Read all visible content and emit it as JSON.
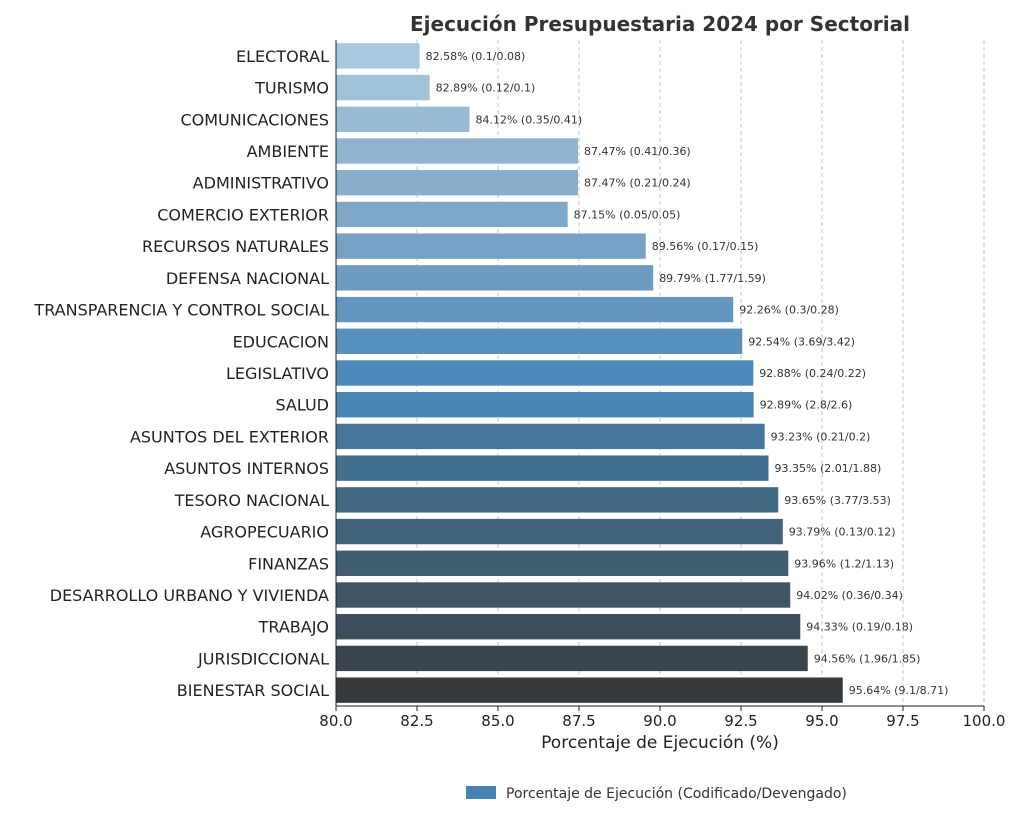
{
  "chart_data": {
    "type": "bar",
    "orientation": "horizontal",
    "title": "Ejecución Presupuestaria 2024 por Sectorial",
    "xlabel": "Porcentaje de Ejecución (%)",
    "ylabel": "",
    "xlim": [
      80.0,
      100.0
    ],
    "xticks": [
      "80.0",
      "82.5",
      "85.0",
      "87.5",
      "90.0",
      "92.5",
      "95.0",
      "97.5",
      "100.0"
    ],
    "grid": "vertical dashed",
    "legend": {
      "position": "bottom-right",
      "entries": [
        "Porcentaje de Ejecución (Codificado/Devengado)"
      ]
    },
    "categories": [
      "ELECTORAL",
      "TURISMO",
      "COMUNICACIONES",
      "AMBIENTE",
      "ADMINISTRATIVO",
      "COMERCIO EXTERIOR",
      "RECURSOS NATURALES",
      "DEFENSA NACIONAL",
      "TRANSPARENCIA Y CONTROL SOCIAL",
      "EDUCACION",
      "LEGISLATIVO",
      "SALUD",
      "ASUNTOS DEL EXTERIOR",
      "ASUNTOS INTERNOS",
      "TESORO NACIONAL",
      "AGROPECUARIO",
      "FINANZAS",
      "DESARROLLO URBANO Y VIVIENDA",
      "TRABAJO",
      "JURISDICCIONAL",
      "BIENESTAR SOCIAL"
    ],
    "values": [
      82.58,
      82.89,
      84.12,
      87.47,
      87.47,
      87.15,
      89.56,
      89.79,
      92.26,
      92.54,
      92.88,
      92.89,
      93.23,
      93.35,
      93.65,
      93.79,
      93.96,
      94.02,
      94.33,
      94.56,
      95.64
    ],
    "data_labels": [
      "82.58% (0.1/0.08)",
      "82.89% (0.12/0.1)",
      "84.12% (0.35/0.41)",
      "87.47% (0.41/0.36)",
      "87.47% (0.21/0.24)",
      "87.15% (0.05/0.05)",
      "89.56% (0.17/0.15)",
      "89.79% (1.77/1.59)",
      "92.26% (0.3/0.28)",
      "92.54% (3.69/3.42)",
      "92.88% (0.24/0.22)",
      "92.89% (2.8/2.6)",
      "93.23% (0.21/0.2)",
      "93.35% (2.01/1.88)",
      "93.65% (3.77/3.53)",
      "93.79% (0.13/0.12)",
      "93.96% (1.2/1.13)",
      "94.02% (0.36/0.34)",
      "94.33% (0.19/0.18)",
      "94.56% (1.96/1.85)",
      "95.64% (9.1/8.71)"
    ],
    "colors": [
      "#a6c8dc",
      "#9fc2d8",
      "#97bbd4",
      "#8fb4d0",
      "#87aecb",
      "#7fa8c8",
      "#76a1c4",
      "#6e9bc0",
      "#6396bf",
      "#5891bd",
      "#4c88b9",
      "#4884b4",
      "#46769a",
      "#44708f",
      "#436a85",
      "#42647b",
      "#405c70",
      "#3e5565",
      "#3d4d5a",
      "#3b454f",
      "#353a3f"
    ],
    "legend_color": "#4682b4"
  }
}
